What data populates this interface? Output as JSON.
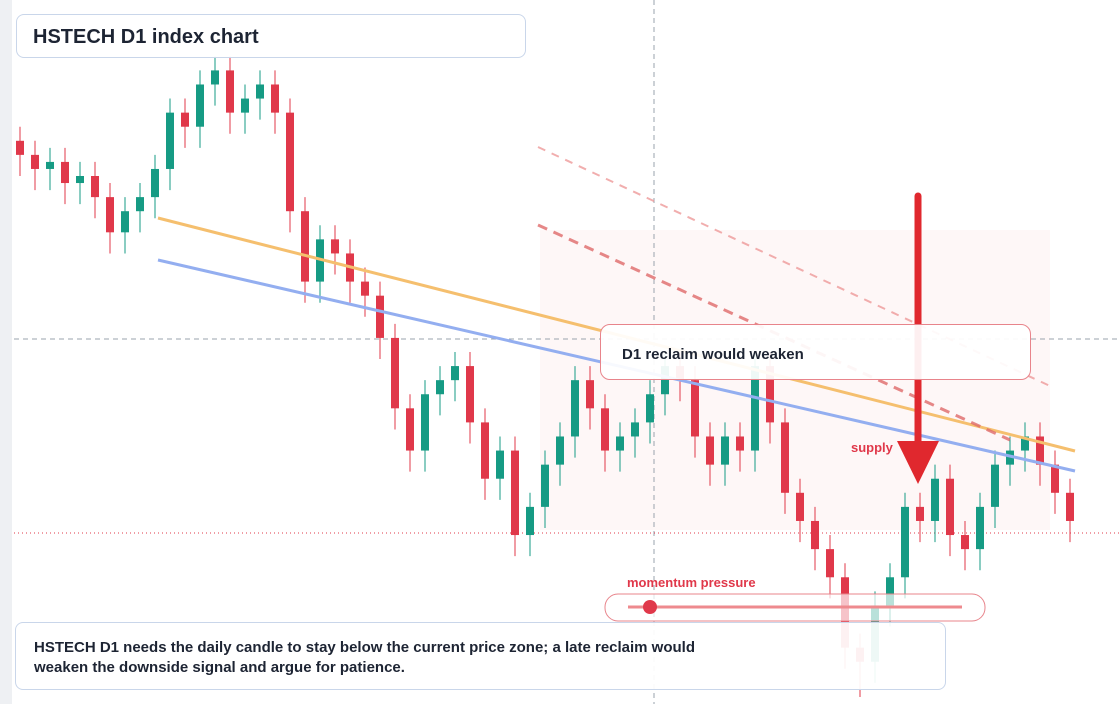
{
  "header": {
    "title": "HSTECH D1 index chart"
  },
  "chart_data": {
    "type": "candlestick",
    "ylim": [
      0,
      100
    ],
    "up_color": "#169b84",
    "down_color": "#e0384a",
    "open": [
      80,
      78,
      76,
      77,
      74,
      75,
      72,
      67,
      70,
      72,
      76,
      84,
      82,
      88,
      90,
      84,
      86,
      88,
      84,
      70,
      60,
      66,
      64,
      60,
      58,
      52,
      42,
      36,
      44,
      46,
      48,
      40,
      32,
      36,
      24,
      28,
      34,
      38,
      46,
      42,
      36,
      38,
      40,
      44,
      48,
      46,
      38,
      34,
      38,
      36,
      48,
      40,
      30,
      26,
      22,
      18,
      8,
      6,
      14,
      18,
      28,
      26,
      32,
      24,
      22,
      28,
      34,
      36,
      38,
      34,
      30
    ],
    "high": [
      82,
      80,
      79,
      79,
      77,
      77,
      74,
      72,
      74,
      78,
      86,
      86,
      90,
      92,
      92,
      88,
      90,
      90,
      86,
      72,
      68,
      68,
      66,
      62,
      60,
      54,
      44,
      46,
      48,
      50,
      50,
      42,
      38,
      38,
      30,
      36,
      40,
      48,
      48,
      44,
      40,
      42,
      46,
      50,
      50,
      48,
      40,
      40,
      40,
      50,
      50,
      42,
      32,
      28,
      24,
      20,
      10,
      16,
      20,
      30,
      30,
      34,
      34,
      26,
      30,
      36,
      38,
      40,
      40,
      36,
      32
    ],
    "low": [
      75,
      73,
      73,
      71,
      71,
      69,
      64,
      64,
      67,
      69,
      73,
      79,
      79,
      85,
      81,
      81,
      83,
      81,
      67,
      57,
      57,
      61,
      57,
      55,
      49,
      39,
      33,
      33,
      41,
      43,
      37,
      29,
      29,
      21,
      21,
      25,
      31,
      35,
      39,
      33,
      33,
      35,
      37,
      41,
      43,
      35,
      31,
      31,
      33,
      33,
      37,
      27,
      23,
      19,
      15,
      5,
      1,
      3,
      11,
      15,
      23,
      23,
      21,
      19,
      19,
      25,
      31,
      33,
      31,
      27,
      23
    ],
    "close": [
      78,
      76,
      77,
      74,
      75,
      72,
      67,
      70,
      72,
      76,
      84,
      82,
      88,
      90,
      84,
      86,
      88,
      84,
      70,
      60,
      66,
      64,
      60,
      58,
      52,
      42,
      36,
      44,
      46,
      48,
      40,
      32,
      36,
      24,
      28,
      34,
      38,
      46,
      42,
      36,
      38,
      40,
      44,
      48,
      46,
      38,
      34,
      38,
      36,
      48,
      40,
      30,
      26,
      22,
      18,
      8,
      6,
      14,
      18,
      28,
      26,
      32,
      24,
      22,
      28,
      34,
      36,
      38,
      34,
      30,
      26
    ]
  },
  "annotations": {
    "reclaim": "D1 reclaim would weaken",
    "supply": "supply",
    "momentum": "momentum pressure"
  },
  "note": "HSTECH D1 needs the daily candle to stay below the current price zone; a late reclaim would weaken the downside signal and argue for patience."
}
